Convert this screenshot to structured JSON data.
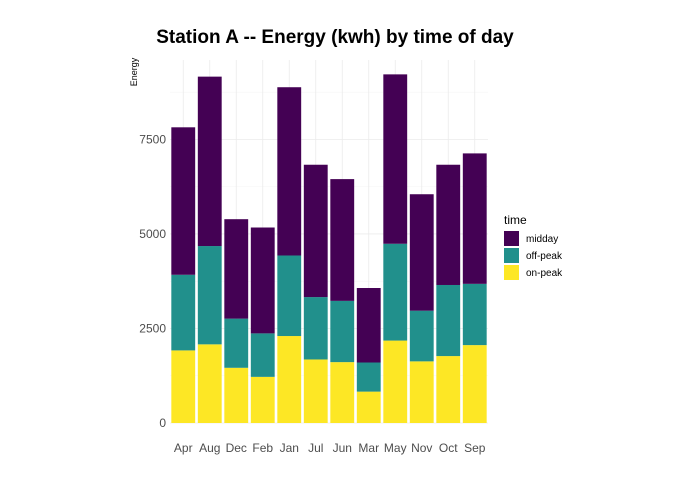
{
  "chart_data": {
    "type": "bar",
    "stacked": true,
    "title": "Station A -- Energy (kwh) by time of day",
    "xlabel": "",
    "ylabel": "Energy",
    "ylim": [
      0,
      9600
    ],
    "yticks": [
      0,
      2500,
      5000,
      7500
    ],
    "grid": true,
    "legend_position": "right",
    "legend_title": "time",
    "categories": [
      "Apr",
      "Aug",
      "Dec",
      "Feb",
      "Jan",
      "Jul",
      "Jun",
      "Mar",
      "May",
      "Nov",
      "Oct",
      "Sep"
    ],
    "series": [
      {
        "name": "midday",
        "color": "#440154",
        "values": [
          3900,
          4480,
          2630,
          2800,
          4450,
          3500,
          3220,
          1970,
          4480,
          3080,
          3180,
          3450
        ]
      },
      {
        "name": "off-peak",
        "color": "#21908C",
        "values": [
          2000,
          2600,
          1300,
          1150,
          2130,
          1650,
          1620,
          770,
          2560,
          1340,
          1880,
          1620
        ]
      },
      {
        "name": "on-peak",
        "color": "#FDE725",
        "values": [
          1920,
          2080,
          1460,
          1220,
          2300,
          1680,
          1610,
          830,
          2180,
          1630,
          1770,
          2060
        ]
      }
    ]
  }
}
